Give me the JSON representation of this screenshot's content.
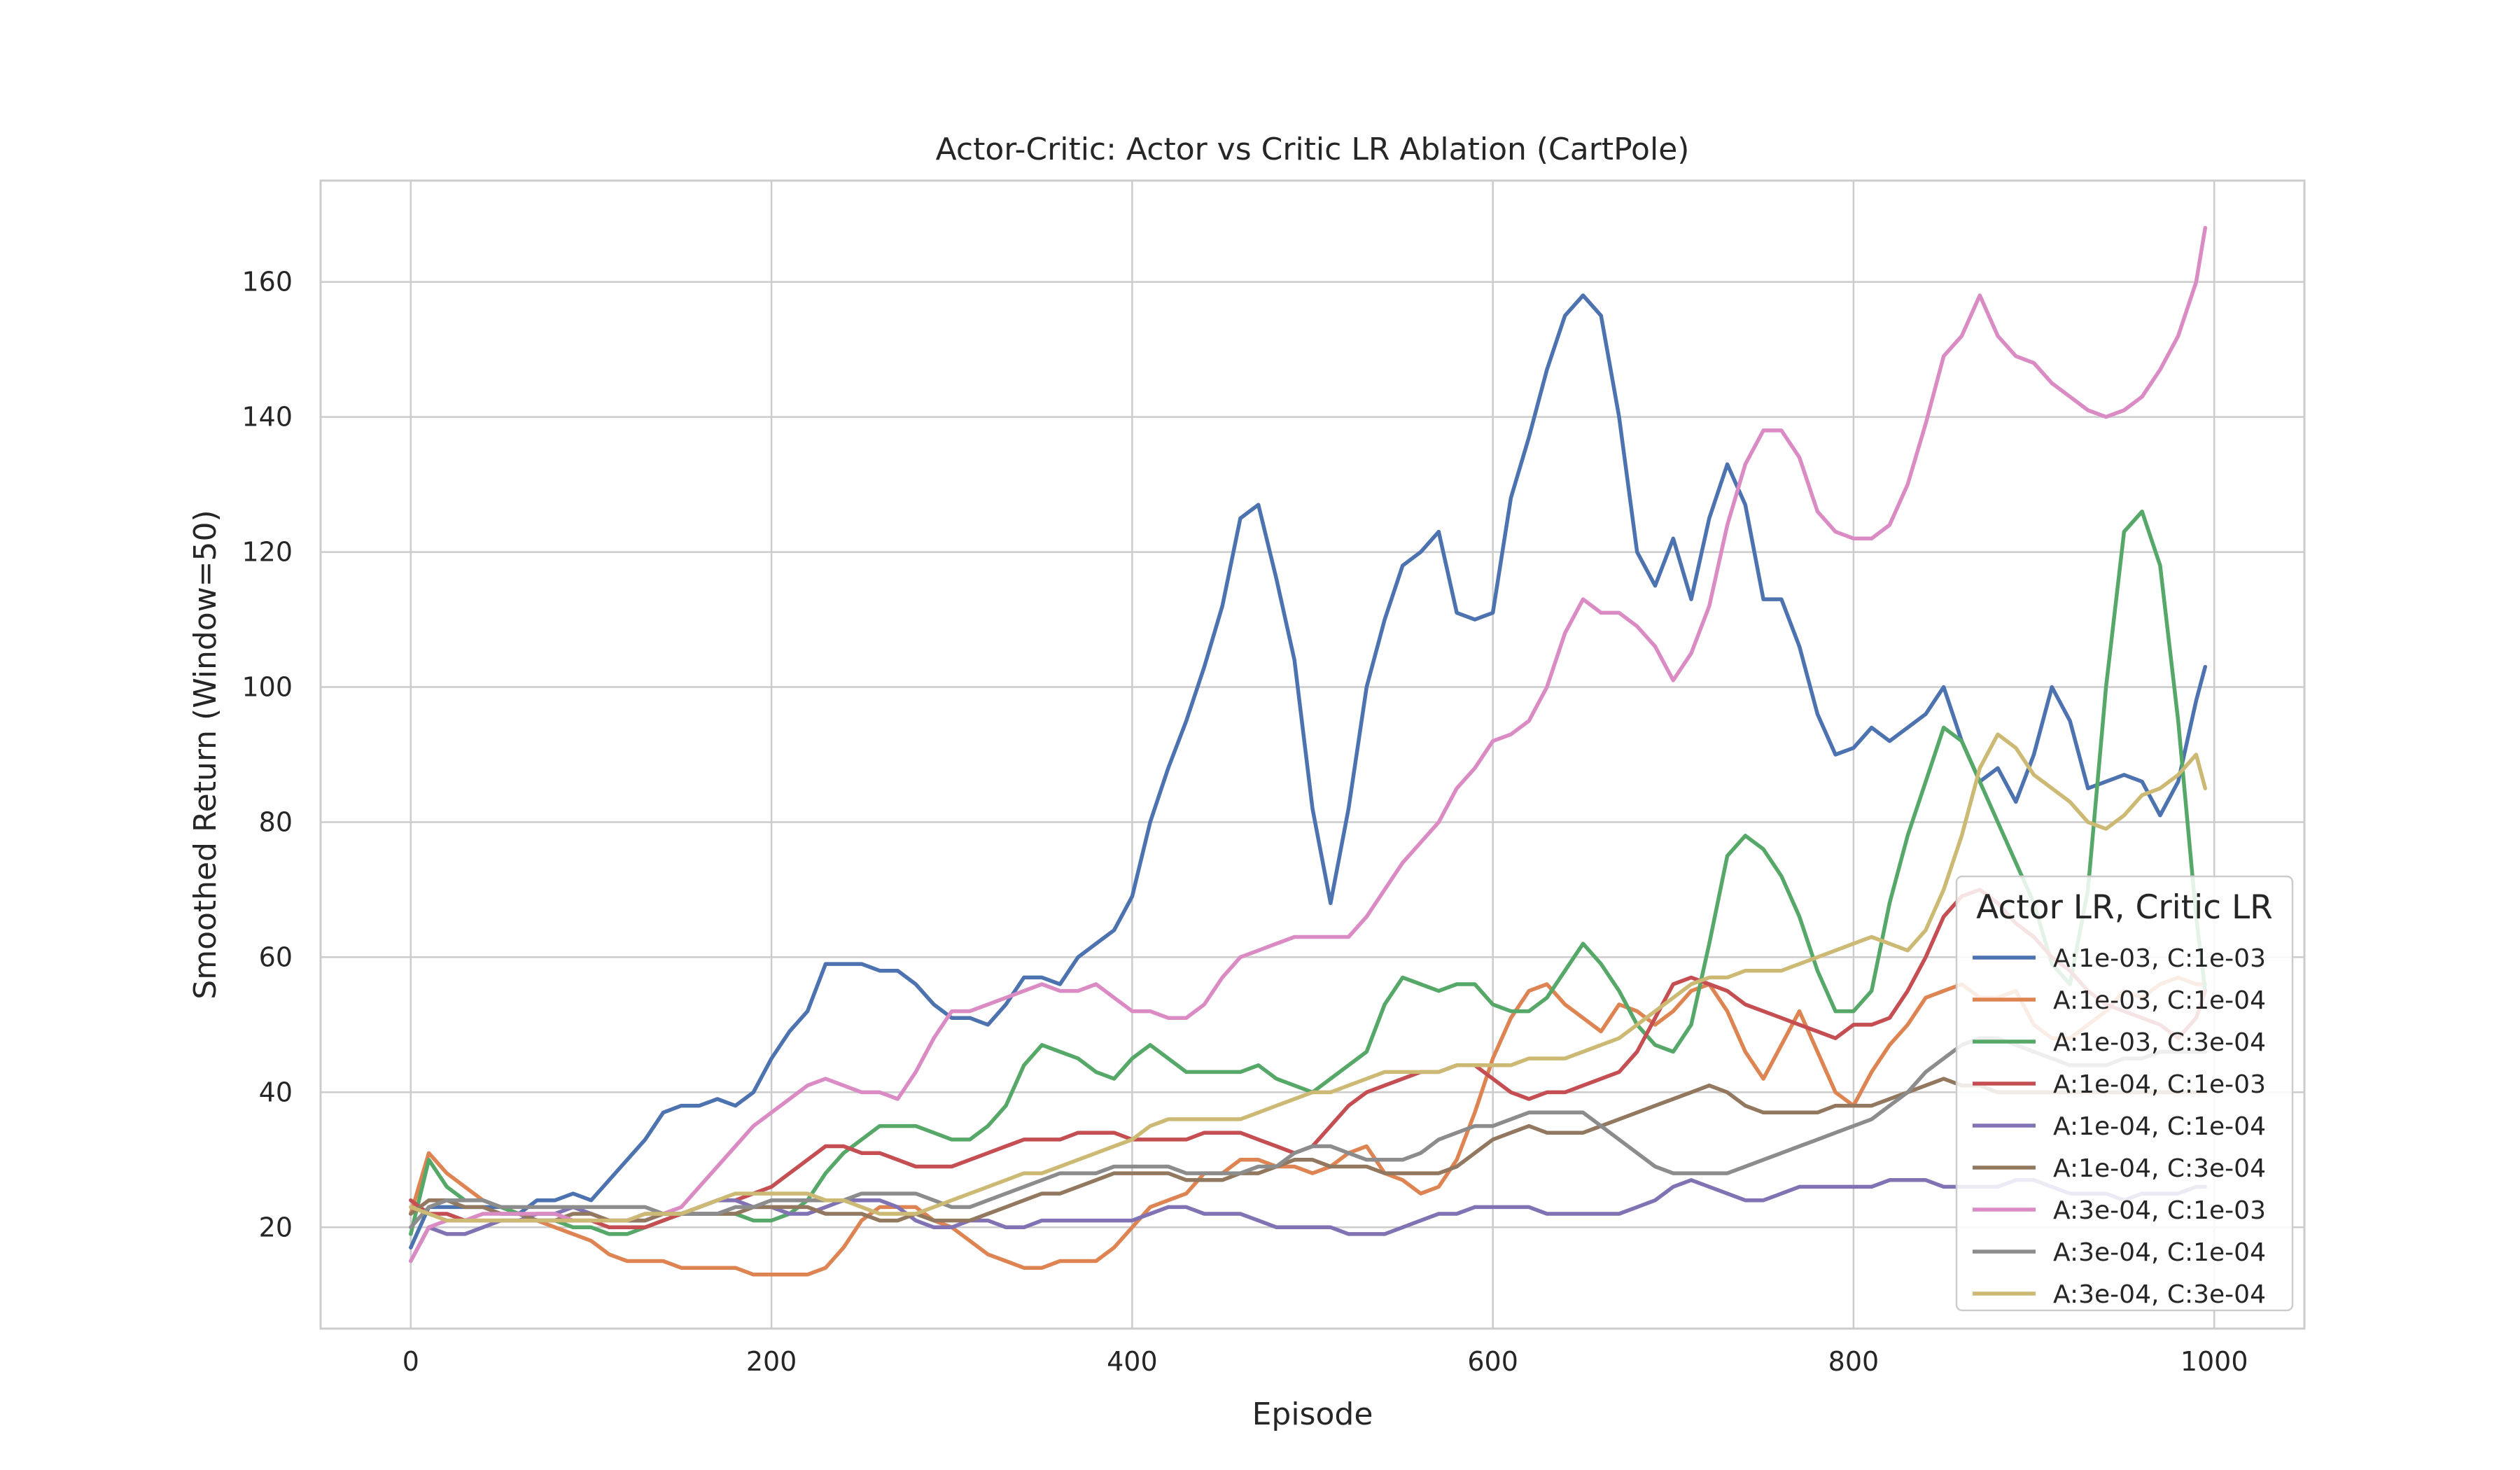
{
  "chart_data": {
    "type": "line",
    "title": "Actor-Critic: Actor vs Critic LR Ablation (CartPole)",
    "xlabel": "Episode",
    "ylabel": "Smoothed Return (Window=50)",
    "xlim": [
      -50,
      1050
    ],
    "ylim": [
      5,
      175
    ],
    "xticks": [
      0,
      200,
      400,
      600,
      800,
      1000
    ],
    "yticks": [
      20,
      40,
      60,
      80,
      100,
      120,
      140,
      160
    ],
    "grid": true,
    "legend": {
      "title": "Actor LR, Critic LR",
      "placement": "lower-right"
    },
    "x": [
      0,
      10,
      20,
      30,
      40,
      50,
      60,
      70,
      80,
      90,
      100,
      110,
      120,
      130,
      140,
      150,
      160,
      170,
      180,
      190,
      200,
      210,
      220,
      230,
      240,
      250,
      260,
      270,
      280,
      290,
      300,
      310,
      320,
      330,
      340,
      350,
      360,
      370,
      380,
      390,
      400,
      410,
      420,
      430,
      440,
      450,
      460,
      470,
      480,
      490,
      500,
      510,
      520,
      530,
      540,
      550,
      560,
      570,
      580,
      590,
      600,
      610,
      620,
      630,
      640,
      650,
      660,
      670,
      680,
      690,
      700,
      710,
      720,
      730,
      740,
      750,
      760,
      770,
      780,
      790,
      800,
      810,
      820,
      830,
      840,
      850,
      860,
      870,
      880,
      890,
      900,
      910,
      920,
      930,
      940,
      950,
      960,
      970,
      980,
      990,
      995
    ],
    "series": [
      {
        "name": "A:1e-03, C:1e-03",
        "color": "#4c72b0",
        "values": [
          17,
          23,
          23,
          23,
          23,
          23,
          22,
          24,
          24,
          25,
          24,
          27,
          30,
          33,
          37,
          38,
          38,
          39,
          38,
          40,
          45,
          49,
          52,
          59,
          59,
          59,
          58,
          58,
          56,
          53,
          51,
          51,
          50,
          53,
          57,
          57,
          56,
          60,
          62,
          64,
          69,
          80,
          88,
          95,
          103,
          112,
          125,
          127,
          116,
          104,
          82,
          68,
          82,
          100,
          110,
          118,
          120,
          123,
          111,
          110,
          111,
          128,
          137,
          147,
          155,
          158,
          155,
          140,
          120,
          115,
          122,
          113,
          125,
          133,
          127,
          113,
          113,
          106,
          96,
          90,
          91,
          94,
          92,
          94,
          96,
          100,
          92,
          86,
          88,
          83,
          90,
          100,
          95,
          85,
          86,
          87,
          86,
          81,
          86,
          98,
          103
        ]
      },
      {
        "name": "A:1e-03, C:1e-04",
        "color": "#dd8452",
        "values": [
          22,
          31,
          28,
          26,
          24,
          23,
          22,
          21,
          20,
          19,
          18,
          16,
          15,
          15,
          15,
          14,
          14,
          14,
          14,
          13,
          13,
          13,
          13,
          14,
          17,
          21,
          23,
          23,
          23,
          21,
          20,
          18,
          16,
          15,
          14,
          14,
          15,
          15,
          15,
          17,
          20,
          23,
          24,
          25,
          28,
          28,
          30,
          30,
          29,
          29,
          28,
          29,
          31,
          32,
          28,
          27,
          25,
          26,
          30,
          37,
          45,
          51,
          55,
          56,
          53,
          51,
          49,
          53,
          52,
          50,
          52,
          55,
          56,
          52,
          46,
          42,
          47,
          52,
          46,
          40,
          38,
          43,
          47,
          50,
          54,
          55,
          56,
          54,
          54,
          55,
          50,
          48,
          48,
          50,
          52,
          55,
          54,
          56,
          57,
          56,
          56
        ]
      },
      {
        "name": "A:1e-03, C:3e-04",
        "color": "#55a868",
        "values": [
          19,
          30,
          26,
          24,
          24,
          23,
          22,
          21,
          21,
          20,
          20,
          19,
          19,
          20,
          21,
          22,
          22,
          22,
          22,
          21,
          21,
          22,
          24,
          28,
          31,
          33,
          35,
          35,
          35,
          34,
          33,
          33,
          35,
          38,
          44,
          47,
          46,
          45,
          43,
          42,
          45,
          47,
          45,
          43,
          43,
          43,
          43,
          44,
          42,
          41,
          40,
          42,
          44,
          46,
          53,
          57,
          56,
          55,
          56,
          56,
          53,
          52,
          52,
          54,
          58,
          62,
          59,
          55,
          50,
          47,
          46,
          50,
          62,
          75,
          78,
          76,
          72,
          66,
          58,
          52,
          52,
          55,
          68,
          78,
          86,
          94,
          92,
          86,
          80,
          74,
          68,
          59,
          56,
          70,
          100,
          123,
          126,
          118,
          95,
          66,
          55
        ]
      },
      {
        "name": "A:1e-04, C:1e-03",
        "color": "#c44e52",
        "values": [
          24,
          22,
          22,
          21,
          21,
          21,
          21,
          21,
          21,
          21,
          21,
          20,
          20,
          20,
          21,
          22,
          23,
          24,
          24,
          25,
          26,
          28,
          30,
          32,
          32,
          31,
          31,
          30,
          29,
          29,
          29,
          30,
          31,
          32,
          33,
          33,
          33,
          34,
          34,
          34,
          33,
          33,
          33,
          33,
          34,
          34,
          34,
          33,
          32,
          31,
          32,
          35,
          38,
          40,
          41,
          42,
          43,
          43,
          44,
          44,
          42,
          40,
          39,
          40,
          40,
          41,
          42,
          43,
          46,
          51,
          56,
          57,
          56,
          55,
          53,
          52,
          51,
          50,
          49,
          48,
          50,
          50,
          51,
          55,
          60,
          66,
          69,
          70,
          68,
          65,
          63,
          60,
          58,
          55,
          53,
          52,
          51,
          50,
          48,
          51,
          55
        ]
      },
      {
        "name": "A:1e-04, C:1e-04",
        "color": "#8172b3",
        "values": [
          15,
          20,
          19,
          19,
          20,
          21,
          21,
          22,
          22,
          23,
          22,
          21,
          21,
          21,
          22,
          22,
          23,
          24,
          24,
          23,
          23,
          22,
          22,
          23,
          24,
          24,
          24,
          23,
          21,
          20,
          20,
          21,
          21,
          20,
          20,
          21,
          21,
          21,
          21,
          21,
          21,
          22,
          23,
          23,
          22,
          22,
          22,
          21,
          20,
          20,
          20,
          20,
          19,
          19,
          19,
          20,
          21,
          22,
          22,
          23,
          23,
          23,
          23,
          22,
          22,
          22,
          22,
          22,
          23,
          24,
          26,
          27,
          26,
          25,
          24,
          24,
          25,
          26,
          26,
          26,
          26,
          26,
          27,
          27,
          27,
          26,
          26,
          26,
          26,
          27,
          27,
          26,
          25,
          25,
          25,
          24,
          25,
          25,
          25,
          26,
          26
        ]
      },
      {
        "name": "A:1e-04, C:3e-04",
        "color": "#937860",
        "values": [
          22,
          24,
          24,
          23,
          23,
          22,
          22,
          21,
          21,
          22,
          22,
          21,
          21,
          21,
          22,
          22,
          22,
          22,
          22,
          23,
          23,
          23,
          23,
          22,
          22,
          22,
          21,
          21,
          22,
          21,
          21,
          21,
          22,
          23,
          24,
          25,
          25,
          26,
          27,
          28,
          28,
          28,
          28,
          27,
          27,
          27,
          28,
          28,
          29,
          30,
          30,
          29,
          29,
          29,
          28,
          28,
          28,
          28,
          29,
          31,
          33,
          34,
          35,
          34,
          34,
          34,
          35,
          36,
          37,
          38,
          39,
          40,
          41,
          40,
          38,
          37,
          37,
          37,
          37,
          38,
          38,
          38,
          39,
          40,
          41,
          42,
          41,
          41,
          40,
          40,
          40,
          40,
          40,
          40,
          40,
          40,
          40,
          40,
          40,
          40,
          40
        ]
      },
      {
        "name": "A:3e-04, C:1e-03",
        "color": "#da8bc3",
        "values": [
          15,
          20,
          21,
          21,
          22,
          22,
          22,
          22,
          22,
          21,
          21,
          21,
          21,
          22,
          22,
          23,
          26,
          29,
          32,
          35,
          37,
          39,
          41,
          42,
          41,
          40,
          40,
          39,
          43,
          48,
          52,
          52,
          53,
          54,
          55,
          56,
          55,
          55,
          56,
          54,
          52,
          52,
          51,
          51,
          53,
          57,
          60,
          61,
          62,
          63,
          63,
          63,
          63,
          66,
          70,
          74,
          77,
          80,
          85,
          88,
          92,
          93,
          95,
          100,
          108,
          113,
          111,
          111,
          109,
          106,
          101,
          105,
          112,
          124,
          133,
          138,
          138,
          134,
          126,
          123,
          122,
          122,
          124,
          130,
          139,
          149,
          152,
          158,
          152,
          149,
          148,
          145,
          143,
          141,
          140,
          141,
          143,
          147,
          152,
          160,
          168
        ]
      },
      {
        "name": "A:3e-04, C:1e-04",
        "color": "#8c8c8c",
        "values": [
          20,
          23,
          24,
          24,
          24,
          23,
          23,
          23,
          23,
          23,
          23,
          23,
          23,
          23,
          22,
          22,
          22,
          22,
          23,
          23,
          24,
          24,
          24,
          24,
          24,
          25,
          25,
          25,
          25,
          24,
          23,
          23,
          24,
          25,
          26,
          27,
          28,
          28,
          28,
          29,
          29,
          29,
          29,
          28,
          28,
          28,
          28,
          29,
          29,
          31,
          32,
          32,
          31,
          30,
          30,
          30,
          31,
          33,
          34,
          35,
          35,
          36,
          37,
          37,
          37,
          37,
          35,
          33,
          31,
          29,
          28,
          28,
          28,
          28,
          29,
          30,
          31,
          32,
          33,
          34,
          35,
          36,
          38,
          40,
          43,
          45,
          47,
          48,
          48,
          47,
          46,
          45,
          44,
          44,
          44,
          45,
          45,
          46,
          46,
          46,
          46
        ]
      },
      {
        "name": "A:3e-04, C:3e-04",
        "color": "#ccb974",
        "values": [
          23,
          22,
          21,
          21,
          21,
          21,
          21,
          21,
          21,
          21,
          21,
          21,
          21,
          22,
          22,
          22,
          23,
          24,
          25,
          25,
          25,
          25,
          25,
          24,
          24,
          23,
          22,
          22,
          22,
          23,
          24,
          25,
          26,
          27,
          28,
          28,
          29,
          30,
          31,
          32,
          33,
          35,
          36,
          36,
          36,
          36,
          36,
          37,
          38,
          39,
          40,
          40,
          41,
          42,
          43,
          43,
          43,
          43,
          44,
          44,
          44,
          44,
          45,
          45,
          45,
          46,
          47,
          48,
          50,
          52,
          54,
          56,
          57,
          57,
          58,
          58,
          58,
          59,
          60,
          61,
          62,
          63,
          62,
          61,
          64,
          70,
          78,
          88,
          93,
          91,
          87,
          85,
          83,
          80,
          79,
          81,
          84,
          85,
          87,
          90,
          85
        ]
      }
    ]
  }
}
